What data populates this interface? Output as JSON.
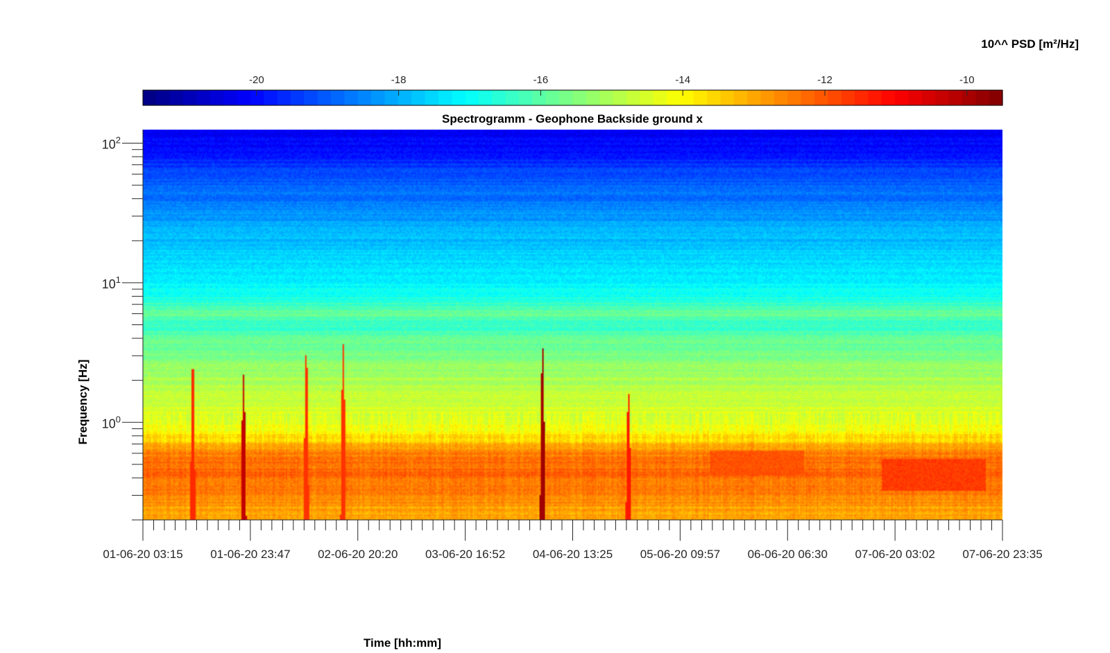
{
  "chart_data": {
    "type": "heatmap",
    "title": "Spectrogramm - Geophone Backside ground x",
    "xlabel": "Time [hh:mm]",
    "ylabel": "Frequency [Hz]",
    "colorbar": {
      "label": "10^^ PSD [m²/Hz]",
      "range": [
        -21.6,
        -9.5
      ],
      "ticks": [
        -20,
        -18,
        -16,
        -14,
        -12,
        -10
      ],
      "tick_labels": [
        "-20",
        "-18",
        "-16",
        "-14",
        "-12",
        "-10"
      ],
      "colormap": "jet",
      "placement": "top"
    },
    "x_axis": {
      "tick_labels": [
        "01-06-20 03:15",
        "01-06-20 23:47",
        "02-06-20 20:20",
        "03-06-20 16:52",
        "04-06-20 13:25",
        "05-06-20 09:57",
        "06-06-20 06:30",
        "07-06-20 03:02",
        "07-06-20 23:35"
      ],
      "minor_ticks_per_major": 10
    },
    "y_axis": {
      "scale": "log",
      "range": [
        0.2,
        125
      ],
      "ticks": [
        1,
        10,
        100
      ],
      "tick_labels": [
        {
          "base": "10",
          "exp": "0"
        },
        {
          "base": "10",
          "exp": "1"
        },
        {
          "base": "10",
          "exp": "2"
        }
      ]
    },
    "psd_log10_profile_by_frequency": {
      "frequency_hz": [
        0.2,
        0.3,
        0.45,
        0.6,
        0.75,
        1,
        1.5,
        2,
        3,
        4,
        5,
        6,
        8,
        10,
        14,
        20,
        30,
        40,
        60,
        80,
        125
      ],
      "psd_log10": [
        -13.2,
        -12.5,
        -12.2,
        -12.5,
        -13.6,
        -14.4,
        -14.7,
        -15.0,
        -15.5,
        -15.9,
        -16.5,
        -15.8,
        -16.8,
        -17.2,
        -17.4,
        -17.8,
        -18.3,
        -18.7,
        -19.2,
        -19.8,
        -20.3
      ]
    },
    "transient_events": [
      {
        "time_frac": 0.058,
        "f_top_hz": 2.4,
        "psd_log10": -11.5
      },
      {
        "time_frac": 0.117,
        "f_top_hz": 2.2,
        "psd_log10": -10.3
      },
      {
        "time_frac": 0.19,
        "f_top_hz": 3.0,
        "psd_log10": -11.6
      },
      {
        "time_frac": 0.233,
        "f_top_hz": 3.6,
        "psd_log10": -11.6
      },
      {
        "time_frac": 0.465,
        "f_top_hz": 3.4,
        "psd_log10": -9.9
      },
      {
        "time_frac": 0.565,
        "f_top_hz": 1.6,
        "psd_log10": -11.3
      }
    ],
    "high_psd_regions": [
      {
        "t_start_frac": 0.66,
        "t_end_frac": 0.77,
        "f_low_hz": 0.42,
        "f_high_hz": 0.62,
        "psd_log10": -12.0
      },
      {
        "t_start_frac": 0.86,
        "t_end_frac": 0.98,
        "f_low_hz": 0.32,
        "f_high_hz": 0.55,
        "psd_log10": -11.7
      }
    ],
    "grid": false
  }
}
